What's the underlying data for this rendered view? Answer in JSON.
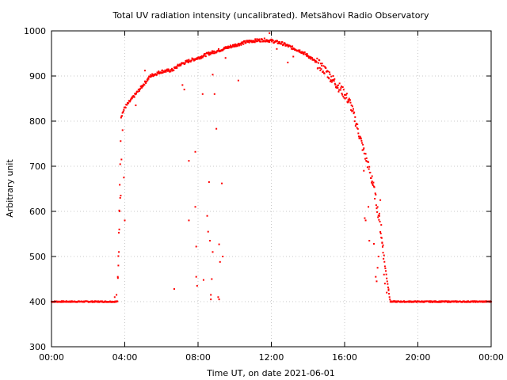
{
  "chart_data": {
    "type": "scatter",
    "title": "Total UV radiation intensity (uncalibrated). Metsähovi Radio Observatory",
    "xlabel": "Time UT, on date 2021-06-01",
    "ylabel": "Arbitrary unit",
    "xlim": [
      "00:00",
      "24:00"
    ],
    "ylim": [
      300,
      1000
    ],
    "x_ticks": [
      "00:00",
      "04:00",
      "08:00",
      "12:00",
      "16:00",
      "20:00",
      "00:00"
    ],
    "y_ticks": [
      "300",
      "400",
      "500",
      "600",
      "700",
      "800",
      "900",
      "1000"
    ],
    "grid": true,
    "legend": "none",
    "colors": {
      "series": "#ff0000",
      "axes": "#000000",
      "grid": "#c8c8c8"
    },
    "series": [
      {
        "x_unit": "hours UT",
        "profile": [
          [
            0.0,
            400
          ],
          [
            3.6,
            400
          ],
          [
            3.8,
            810
          ],
          [
            4.0,
            830
          ],
          [
            4.4,
            850
          ],
          [
            5.0,
            880
          ],
          [
            5.4,
            900
          ],
          [
            6.0,
            910
          ],
          [
            6.6,
            913
          ],
          [
            7.0,
            925
          ],
          [
            7.6,
            935
          ],
          [
            8.0,
            940
          ],
          [
            8.6,
            950
          ],
          [
            9.0,
            955
          ],
          [
            9.6,
            963
          ],
          [
            10.0,
            968
          ],
          [
            10.6,
            975
          ],
          [
            11.0,
            978
          ],
          [
            11.6,
            980
          ],
          [
            12.0,
            978
          ],
          [
            12.6,
            972
          ],
          [
            13.0,
            965
          ],
          [
            13.6,
            955
          ],
          [
            14.0,
            945
          ],
          [
            14.6,
            925
          ],
          [
            15.0,
            910
          ],
          [
            15.6,
            880
          ],
          [
            16.0,
            860
          ],
          [
            16.3,
            840
          ],
          [
            16.6,
            800
          ],
          [
            17.0,
            740
          ],
          [
            17.3,
            700
          ],
          [
            17.6,
            650
          ],
          [
            17.9,
            580
          ],
          [
            18.2,
            480
          ],
          [
            18.5,
            400
          ],
          [
            24.0,
            400
          ]
        ],
        "outliers": [
          [
            3.45,
            410
          ],
          [
            3.55,
            415
          ],
          [
            3.62,
            455
          ],
          [
            3.65,
            480
          ],
          [
            3.68,
            510
          ],
          [
            3.7,
            560
          ],
          [
            3.72,
            600
          ],
          [
            3.75,
            630
          ],
          [
            3.78,
            635
          ],
          [
            3.82,
            715
          ],
          [
            3.88,
            780
          ],
          [
            3.95,
            675
          ],
          [
            4.0,
            580
          ],
          [
            4.6,
            835
          ],
          [
            5.1,
            912
          ],
          [
            6.7,
            428
          ],
          [
            7.15,
            880
          ],
          [
            7.25,
            870
          ],
          [
            7.5,
            580
          ],
          [
            7.5,
            712
          ],
          [
            7.85,
            610
          ],
          [
            7.85,
            732
          ],
          [
            7.9,
            522
          ],
          [
            7.9,
            455
          ],
          [
            7.95,
            435
          ],
          [
            8.25,
            860
          ],
          [
            8.3,
            448
          ],
          [
            8.5,
            590
          ],
          [
            8.55,
            555
          ],
          [
            8.6,
            665
          ],
          [
            8.65,
            535
          ],
          [
            8.7,
            415
          ],
          [
            8.7,
            405
          ],
          [
            8.75,
            450
          ],
          [
            8.8,
            903
          ],
          [
            8.8,
            510
          ],
          [
            8.9,
            860
          ],
          [
            9.0,
            783
          ],
          [
            9.1,
            410
          ],
          [
            9.15,
            405
          ],
          [
            9.15,
            527
          ],
          [
            9.2,
            488
          ],
          [
            9.3,
            662
          ],
          [
            9.35,
            500
          ],
          [
            9.5,
            940
          ],
          [
            10.2,
            890
          ],
          [
            17.05,
            690
          ],
          [
            17.1,
            585
          ],
          [
            17.15,
            580
          ],
          [
            17.3,
            610
          ],
          [
            17.35,
            535
          ],
          [
            17.5,
            678
          ],
          [
            17.6,
            528
          ],
          [
            17.7,
            455
          ],
          [
            17.75,
            445
          ],
          [
            17.8,
            475
          ],
          [
            17.85,
            500
          ],
          [
            17.9,
            595
          ],
          [
            17.95,
            625
          ],
          [
            18.0,
            570
          ],
          [
            18.05,
            530
          ],
          [
            18.1,
            525
          ],
          [
            18.15,
            460
          ],
          [
            18.2,
            440
          ],
          [
            18.3,
            420
          ],
          [
            18.4,
            425
          ],
          [
            11.9,
            995
          ],
          [
            12.3,
            960
          ],
          [
            12.9,
            930
          ],
          [
            13.2,
            943
          ]
        ]
      }
    ]
  }
}
